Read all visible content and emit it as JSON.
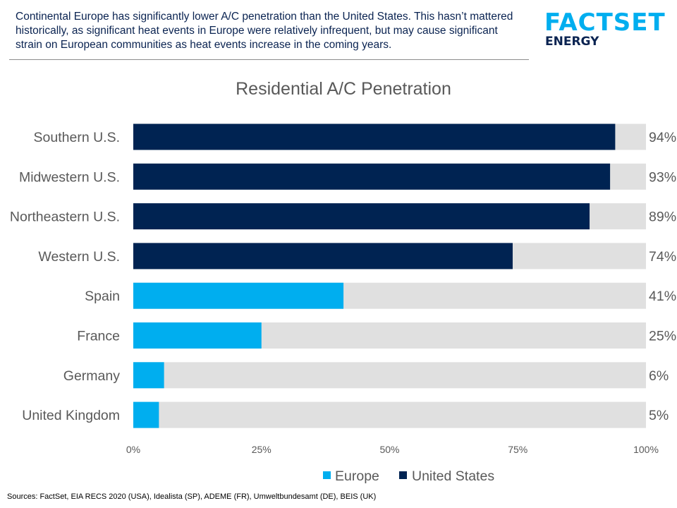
{
  "header": {
    "text": "Continental Europe has significantly lower A/C penetration than the United States. This hasn’t mattered historically, as significant heat events in Europe were relatively infrequent, but may cause significant strain on European communities as heat events increase in the coming years."
  },
  "logo": {
    "main": "FACTSET",
    "sub": "ENERGY"
  },
  "sources": "Sources: FactSet, EIA RECS 2020 (USA), Idealista (SP), ADEME (FR), Umweltbundesamt (DE), BEIS (UK)",
  "colors": {
    "europe": "#00aeef",
    "us": "#002352",
    "track": "#e0e0e0",
    "text": "#595959"
  },
  "chart_data": {
    "type": "bar",
    "orientation": "horizontal",
    "title": "Residential A/C Penetration",
    "categories": [
      "Southern U.S.",
      "Midwestern U.S.",
      "Northeastern U.S.",
      "Western U.S.",
      "Spain",
      "France",
      "Germany",
      "United Kingdom"
    ],
    "values": [
      94,
      93,
      89,
      74,
      41,
      25,
      6,
      5
    ],
    "value_labels": [
      "94%",
      "93%",
      "89%",
      "74%",
      "41%",
      "25%",
      "6%",
      "5%"
    ],
    "groups": [
      "United States",
      "United States",
      "United States",
      "United States",
      "Europe",
      "Europe",
      "Europe",
      "Europe"
    ],
    "legend": [
      {
        "name": "Europe",
        "color": "#00aeef"
      },
      {
        "name": "United States",
        "color": "#002352"
      }
    ],
    "legend_position": "bottom",
    "xlim": [
      0,
      100
    ],
    "xticks": [
      0,
      25,
      50,
      75,
      100
    ],
    "xtick_labels": [
      "0%",
      "25%",
      "50%",
      "75%",
      "100%"
    ],
    "background_track_max": 100,
    "grid": false
  }
}
